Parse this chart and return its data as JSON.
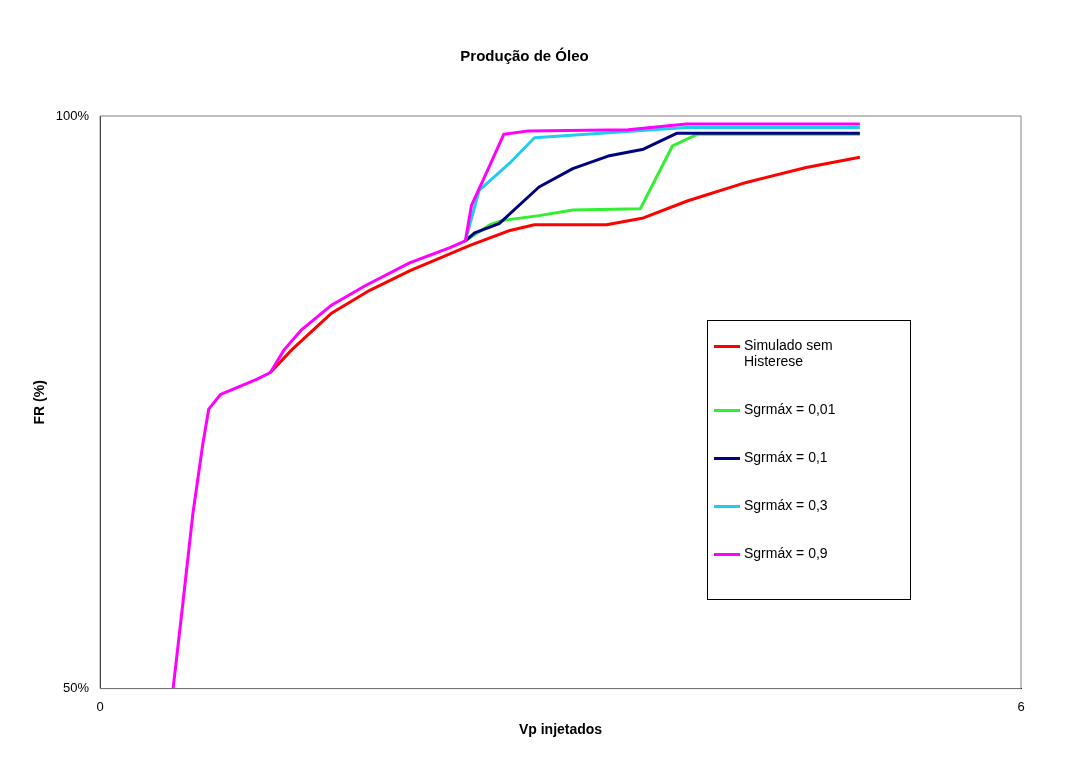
{
  "chart_data": {
    "type": "line",
    "title": "Produção de Óleo",
    "xlabel": "Vp injetados",
    "ylabel": "FR (%)",
    "xlim": [
      0,
      6
    ],
    "xticks": [
      0,
      6
    ],
    "ylim": [
      50,
      100
    ],
    "yticks": [
      {
        "value": 50,
        "label": "50%"
      },
      {
        "value": 100,
        "label": "100%"
      }
    ],
    "grid": false,
    "legend": "right",
    "marker": "none",
    "line_style": "solid",
    "series": [
      {
        "name": "Simulado sem Histerese",
        "color": "#ff0000",
        "x": [
          1.11,
          1.25,
          1.51,
          1.76,
          2.02,
          2.41,
          2.67,
          2.83,
          3.3,
          3.54,
          3.83,
          4.21,
          4.6,
          4.95
        ],
        "values": [
          77.6,
          79.6,
          82.8,
          84.8,
          86.5,
          88.7,
          90,
          90.5,
          90.5,
          91.1,
          92.6,
          94.2,
          95.5,
          96.4
        ]
      },
      {
        "name": "Sgrmáx = 0,01",
        "color": "#33ee33",
        "x": [
          2.38,
          2.54,
          2.63,
          2.86,
          3.08,
          3.52,
          3.73,
          3.89,
          4.95
        ],
        "values": [
          89.1,
          90.5,
          90.9,
          91.3,
          91.8,
          91.9,
          97.4,
          98.4,
          98.4
        ]
      },
      {
        "name": "Sgrmáx = 0,1",
        "color": "#000080",
        "x": [
          2.38,
          2.44,
          2.6,
          2.86,
          3.08,
          3.31,
          3.54,
          3.76,
          4.95
        ],
        "values": [
          89.1,
          89.8,
          90.6,
          93.8,
          95.4,
          96.5,
          97.1,
          98.5,
          98.5
        ]
      },
      {
        "name": "Sgrmáx = 0,3",
        "color": "#22ccee",
        "x": [
          2.38,
          2.47,
          2.67,
          2.83,
          3.82,
          4.95
        ],
        "values": [
          89.1,
          93.5,
          95.9,
          98.1,
          99,
          99
        ]
      },
      {
        "name": "Sgrmáx = 0,9",
        "color": "#ff00ff",
        "x": [
          0.476,
          0.54,
          0.605,
          0.67,
          0.708,
          0.786,
          1.02,
          1.11,
          1.2,
          1.31,
          1.51,
          1.73,
          2.02,
          2.28,
          2.38,
          2.42,
          2.54,
          2.63,
          2.79,
          3.44,
          3.82,
          4.95
        ],
        "values": [
          50,
          57.5,
          65.3,
          71.4,
          74.4,
          75.7,
          77,
          77.6,
          79.6,
          81.3,
          83.5,
          85.2,
          87.2,
          88.5,
          89.1,
          92.2,
          95.7,
          98.4,
          98.7,
          98.8,
          99.3,
          99.3
        ]
      }
    ]
  }
}
